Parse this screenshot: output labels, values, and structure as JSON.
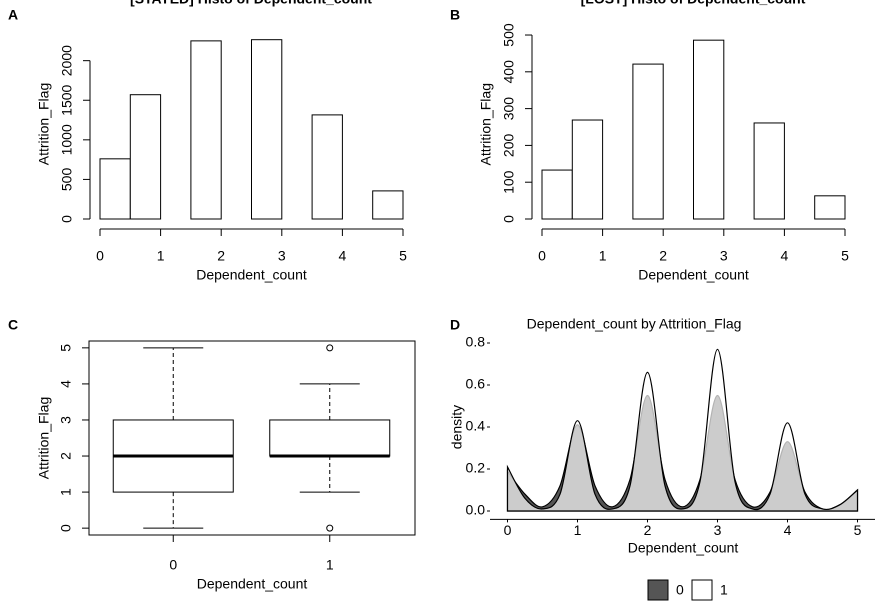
{
  "chart_data": [
    {
      "type": "histogram",
      "panel": "A",
      "title": "[STAYED] Histo of Dependent_count",
      "xlabel": "Dependent_count",
      "ylabel": "Attrition_Flag",
      "bins": [
        0,
        0.5,
        1,
        1.5,
        2,
        2.5,
        3,
        3.5,
        4,
        4.5,
        5
      ],
      "values": [
        760,
        1570,
        0,
        2250,
        0,
        2265,
        0,
        1315,
        0,
        355
      ],
      "xlim": [
        0,
        5
      ],
      "xticks": [
        0,
        1,
        2,
        3,
        4,
        5
      ],
      "ylim": [
        0,
        2400
      ],
      "yticks": [
        0,
        500,
        1000,
        1500,
        2000
      ],
      "color": "#ffffff"
    },
    {
      "type": "histogram",
      "panel": "B",
      "title": "[LOST] Histo of Dependent_count",
      "xlabel": "Dependent_count",
      "ylabel": "Attrition_Flag",
      "bins": [
        0,
        0.5,
        1,
        1.5,
        2,
        2.5,
        3,
        3.5,
        4,
        4.5,
        5
      ],
      "values": [
        133,
        269,
        0,
        421,
        0,
        486,
        0,
        261,
        0,
        63
      ],
      "xlim": [
        0,
        5
      ],
      "xticks": [
        0,
        1,
        2,
        3,
        4,
        5
      ],
      "ylim": [
        0,
        515
      ],
      "yticks": [
        0,
        100,
        200,
        300,
        400,
        500
      ],
      "color": "#ffffff"
    },
    {
      "type": "box",
      "panel": "C",
      "xlabel": "Dependent_count",
      "ylabel": "Attrition_Flag",
      "categories": [
        "0",
        "1"
      ],
      "boxes": [
        {
          "min": 0,
          "q1": 1,
          "median": 2,
          "q3": 3,
          "max": 5
        },
        {
          "min": 1,
          "q1": 2,
          "median": 2,
          "q3": 3,
          "max": 4,
          "outliers": [
            0,
            5
          ]
        }
      ],
      "ylim": [
        -0.19,
        5.19
      ],
      "yticks": [
        0,
        1,
        2,
        3,
        4,
        5
      ]
    },
    {
      "type": "density",
      "panel": "D",
      "title": "Dependent_count  by  Attrition_Flag",
      "xlabel": "Dependent_count",
      "ylabel": "density",
      "x": [
        0,
        0.25,
        0.5,
        0.75,
        1,
        1.25,
        1.5,
        1.75,
        2,
        2.25,
        2.5,
        2.75,
        3,
        3.25,
        3.5,
        3.75,
        4,
        4.25,
        4.5,
        4.75,
        5
      ],
      "series": [
        {
          "name": "0",
          "color": "#555555",
          "values": [
            0.19,
            0.08,
            0.02,
            0.12,
            0.41,
            0.12,
            0.02,
            0.15,
            0.55,
            0.15,
            0.02,
            0.15,
            0.55,
            0.15,
            0.02,
            0.09,
            0.33,
            0.09,
            0.01,
            0.03,
            0.1
          ]
        },
        {
          "name": "1",
          "color": "#ffffff",
          "values": [
            0.21,
            0.06,
            0.01,
            0.08,
            0.43,
            0.08,
            0.01,
            0.12,
            0.66,
            0.12,
            0.01,
            0.14,
            0.77,
            0.14,
            0.01,
            0.08,
            0.42,
            0.08,
            0.01,
            0.03,
            0.1
          ]
        }
      ],
      "xlim": [
        -0.25,
        5.25
      ],
      "xticks": [
        0,
        1,
        2,
        3,
        4,
        5
      ],
      "ylim": [
        -0.04,
        0.84
      ],
      "yticks": [
        {
          "value": 0,
          "label": "0.0"
        },
        {
          "value": 0.2,
          "label": "0.2"
        },
        {
          "value": 0.4,
          "label": "0.4"
        },
        {
          "value": 0.6,
          "label": "0.6"
        },
        {
          "value": 0.8,
          "label": "0.8"
        }
      ],
      "legend": "bottom"
    }
  ]
}
